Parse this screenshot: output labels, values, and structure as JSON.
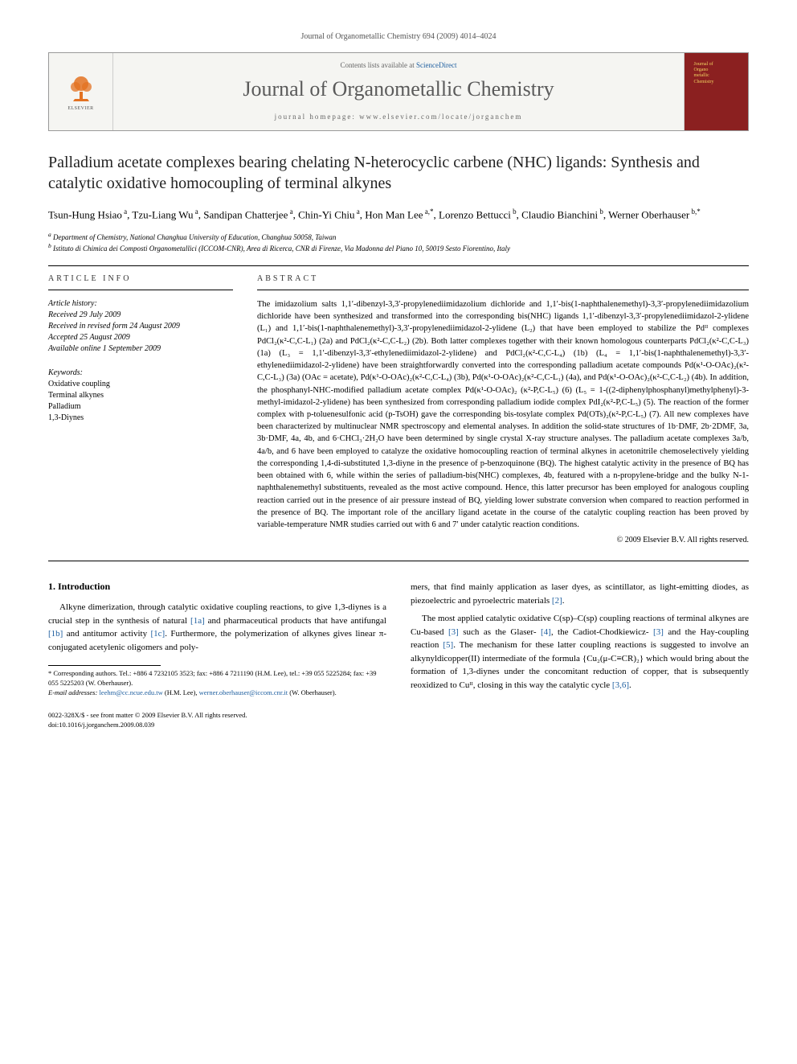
{
  "running_header": "Journal of Organometallic Chemistry 694 (2009) 4014–4024",
  "masthead": {
    "contents_prefix": "Contents lists available at ",
    "contents_link": "ScienceDirect",
    "journal_name": "Journal of Organometallic Chemistry",
    "homepage_prefix": "journal homepage: ",
    "homepage_url": "www.elsevier.com/locate/jorganchem",
    "elsevier_label": "ELSEVIER",
    "cover_line1": "Journal of",
    "cover_line2": "Organo",
    "cover_line3": "metallic",
    "cover_line4": "Chemistry"
  },
  "title": "Palladium acetate complexes bearing chelating N-heterocyclic carbene (NHC) ligands: Synthesis and catalytic oxidative homocoupling of terminal alkynes",
  "authors_html": "Tsun-Hung Hsiao<sup> a</sup>, Tzu-Liang Wu<sup> a</sup>, Sandipan Chatterjee<sup> a</sup>, Chin-Yi Chiu<sup> a</sup>, Hon Man Lee<sup> a,*</sup>, Lorenzo Bettucci<sup> b</sup>, Claudio Bianchini<sup> b</sup>, Werner Oberhauser<sup> b,*</sup>",
  "affiliations": {
    "a": "Department of Chemistry, National Changhua University of Education, Changhua 50058, Taiwan",
    "b": "Istituto di Chimica dei Composti Organometallici (ICCOM-CNR), Area di Ricerca, CNR di Firenze, Via Madonna del Piano 10, 50019 Sesto Fiorentino, Italy"
  },
  "article_info_label": "ARTICLE INFO",
  "abstract_label": "ABSTRACT",
  "history": {
    "head": "Article history:",
    "received": "Received 29 July 2009",
    "revised": "Received in revised form 24 August 2009",
    "accepted": "Accepted 25 August 2009",
    "online": "Available online 1 September 2009"
  },
  "keywords": {
    "head": "Keywords:",
    "items": [
      "Oxidative coupling",
      "Terminal alkynes",
      "Palladium",
      "1,3-Diynes"
    ]
  },
  "abstract": "The imidazolium salts 1,1′-dibenzyl-3,3′-propylenediimidazolium dichloride and 1,1′-bis(1-naphthalenemethyl)-3,3′-propylenediimidazolium dichloride have been synthesized and transformed into the corresponding bis(NHC) ligands 1,1′-dibenzyl-3,3′-propylenediimidazol-2-ylidene (L₁) and 1,1′-bis(1-naphthalenemethyl)-3,3′-propylenediimidazol-2-ylidene (L₂) that have been employed to stabilize the Pdᴵᴵ complexes PdCl₂(κ²-C,C-L₁) (2a) and PdCl₂(κ²-C,C-L₂) (2b). Both latter complexes together with their known homologous counterparts PdCl₂(κ²-C,C-L₃) (1a) (L₃ = 1,1′-dibenzyl-3,3′-ethylenediimidazol-2-ylidene) and PdCl₂(κ²-C,C-L₄) (1b) (L₄ = 1,1′-bis(1-naphthalenemethyl)-3,3′-ethylenediimidazol-2-ylidene) have been straightforwardly converted into the corresponding palladium acetate compounds Pd(κ¹-O-OAc)₂(κ²-C,C-L₃) (3a) (OAc = acetate), Pd(κ¹-O-OAc)₂(κ²-C,C-L₄) (3b), Pd(κ¹-O-OAc)₂(κ²-C,C-L₁) (4a), and Pd(κ¹-O-OAc)₂(κ²-C,C-L₂) (4b). In addition, the phosphanyl-NHC-modified palladium acetate complex Pd(κ¹-O-OAc)₂ (κ²-P,C-L₅) (6) (L₅ = 1-((2-diphenylphosphanyl)methylphenyl)-3-methyl-imidazol-2-ylidene) has been synthesized from corresponding palladium iodide complex PdI₂(κ²-P,C-L₅) (5). The reaction of the former complex with p-toluenesulfonic acid (p-TsOH) gave the corresponding bis-tosylate complex Pd(OTs)₂(κ²-P,C-L₅) (7). All new complexes have been characterized by multinuclear NMR spectroscopy and elemental analyses. In addition the solid-state structures of 1b·DMF, 2b·2DMF, 3a, 3b·DMF, 4a, 4b, and 6·CHCl₃·2H₂O have been determined by single crystal X-ray structure analyses. The palladium acetate complexes 3a/b, 4a/b, and 6 have been employed to catalyze the oxidative homocoupling reaction of terminal alkynes in acetonitrile chemoselectively yielding the corresponding 1,4-di-substituted 1,3-diyne in the presence of p-benzoquinone (BQ). The highest catalytic activity in the presence of BQ has been obtained with 6, while within the series of palladium-bis(NHC) complexes, 4b, featured with a n-propylene-bridge and the bulky N-1-naphthalenemethyl substituents, revealed as the most active compound. Hence, this latter precursor has been employed for analogous coupling reaction carried out in the presence of air pressure instead of BQ, yielding lower substrate conversion when compared to reaction performed in the presence of BQ. The important role of the ancillary ligand acetate in the course of the catalytic coupling reaction has been proved by variable-temperature NMR studies carried out with 6 and 7′ under catalytic reaction conditions.",
  "copyright": "© 2009 Elsevier B.V. All rights reserved.",
  "section1_heading": "1. Introduction",
  "body_left_p1": "Alkyne dimerization, through catalytic oxidative coupling reactions, to give 1,3-diynes is a crucial step in the synthesis of natural [1a] and pharmaceutical products that have antifungal [1b] and antitumor activity [1c]. Furthermore, the polymerization of alkynes gives linear π-conjugated acetylenic oligomers and poly-",
  "body_right_p1": "mers, that find mainly application as laser dyes, as scintillator, as light-emitting diodes, as piezoelectric and pyroelectric materials [2].",
  "body_right_p2": "The most applied catalytic oxidative C(sp)–C(sp) coupling reactions of terminal alkynes are Cu-based [3] such as the Glaser- [4], the Cadiot-Chodkiewicz- [3] and the Hay-coupling reaction [5]. The mechanism for these latter coupling reactions is suggested to involve an alkynyldicopper(II) intermediate of the formula {Cu₂(μ-C≡CR)₂} which would bring about the formation of 1,3-diynes under the concomitant reduction of copper, that is subsequently reoxidized to Cuᴵᴵ, closing in this way the catalytic cycle [3,6].",
  "footnotes": {
    "corr": "* Corresponding authors. Tel.: +886 4 7232105 3523; fax: +886 4 7211190 (H.M. Lee), tel.: +39 055 5225284; fax: +39 055 5225203 (W. Oberhauser).",
    "email_label": "E-mail addresses:",
    "email1": "leehm@cc.ncue.edu.tw",
    "email1_who": "(H.M. Lee),",
    "email2": "werner.oberhauser@iccom.cnr.it",
    "email2_who": "(W. Oberhauser)."
  },
  "footer": {
    "line1": "0022-328X/$ - see front matter © 2009 Elsevier B.V. All rights reserved.",
    "line2": "doi:10.1016/j.jorganchem.2009.08.039"
  },
  "colors": {
    "link": "#2060a0",
    "elsevier_orange": "#e37222",
    "cover_bg": "#8b2020",
    "cover_text": "#f0d060"
  }
}
